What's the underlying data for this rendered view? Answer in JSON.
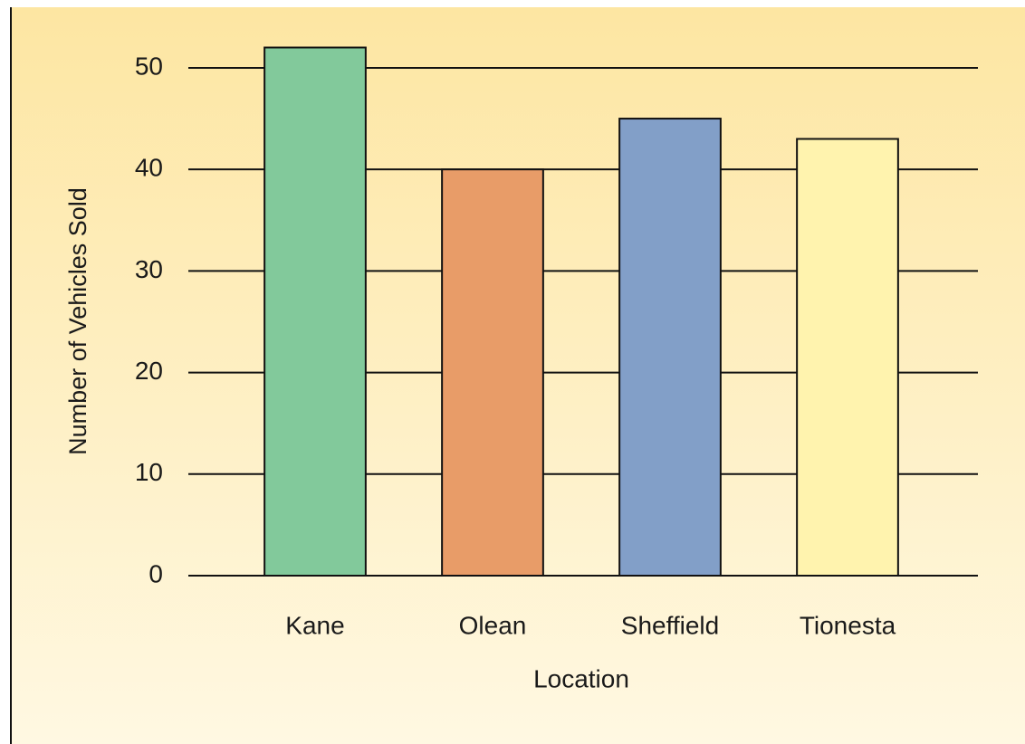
{
  "chart_data": {
    "type": "bar",
    "categories": [
      "Kane",
      "Olean",
      "Sheffield",
      "Tionesta"
    ],
    "values": [
      52,
      40,
      45,
      43
    ],
    "colors": [
      "#82c99b",
      "#e89c68",
      "#829fc8",
      "#fff3ae"
    ],
    "ylabel": "Number of Vehicles Sold",
    "xlabel": "Location",
    "ylim": [
      0,
      52
    ],
    "yticks": [
      0,
      10,
      20,
      30,
      40,
      50
    ],
    "grid": true
  }
}
